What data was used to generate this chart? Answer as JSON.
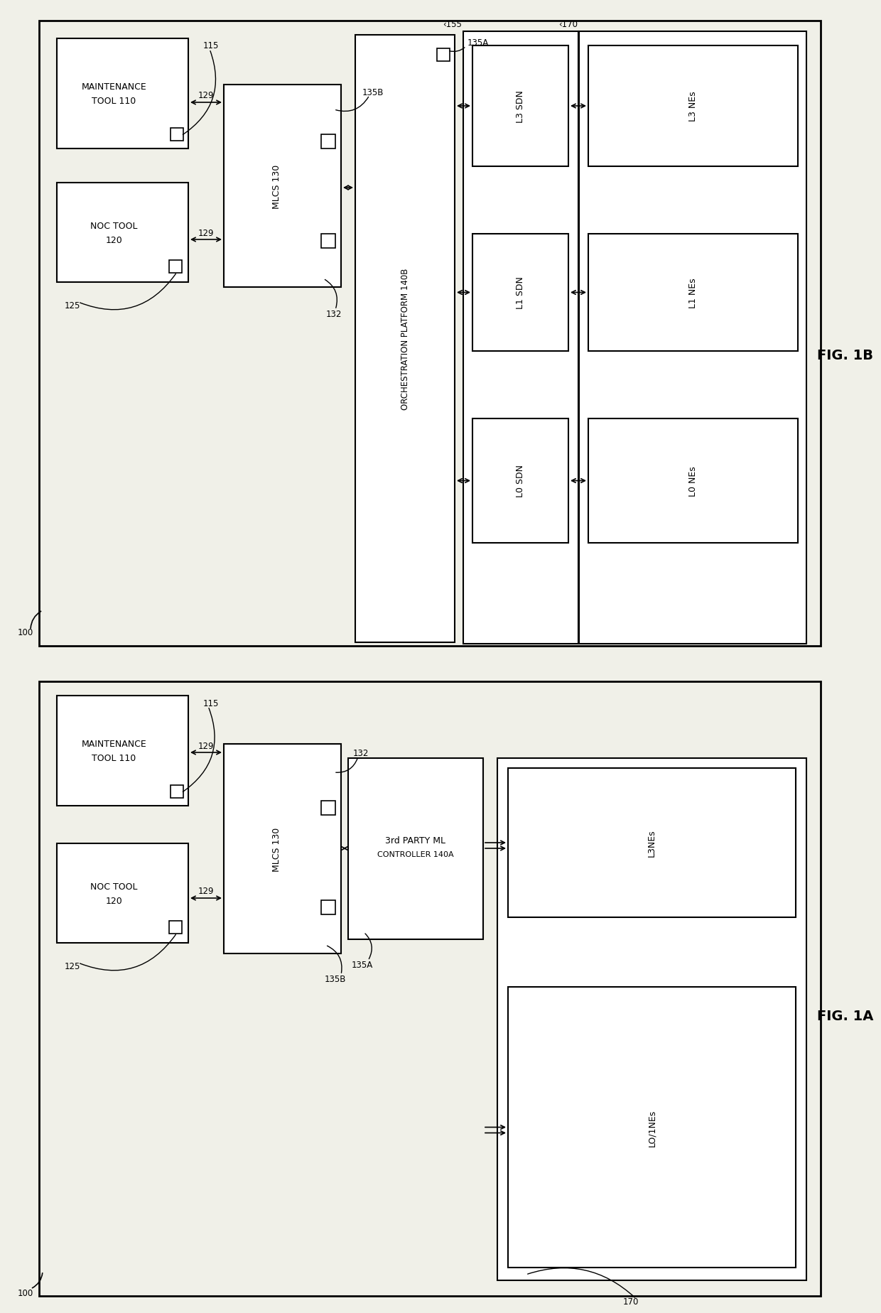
{
  "fig_width": 12.4,
  "fig_height": 18.49,
  "dpi": 100,
  "bg_color": "#f0f0e8",
  "box_fc": "#ffffff",
  "box_ec": "#000000",
  "fig1b": {
    "title": "FIG. 1B",
    "outer": [
      55,
      30,
      1100,
      880
    ],
    "label100": [
      38,
      840,
      "100"
    ],
    "maint_tool": [
      80,
      55,
      185,
      155,
      "MAINTENANCE\nTOOL 110",
      "115"
    ],
    "noc_tool": [
      80,
      255,
      185,
      140,
      "NOC TOOL\n120",
      "125"
    ],
    "mlcs": [
      315,
      120,
      165,
      280,
      "MLCS 130",
      "135B",
      "132"
    ],
    "orch": [
      500,
      55,
      140,
      840,
      "ORCHESTRATION PLATFORM 140B",
      "135A"
    ],
    "sdn_outer": [
      650,
      45,
      160,
      855,
      "155"
    ],
    "l3sdn": [
      663,
      68,
      135,
      165,
      "L3 SDN"
    ],
    "l1sdn": [
      663,
      335,
      135,
      160,
      "L1 SDN"
    ],
    "l0sdn": [
      663,
      595,
      135,
      175,
      "L0 SDN"
    ],
    "nes_outer": [
      820,
      45,
      310,
      855,
      "170"
    ],
    "l3nes": [
      835,
      68,
      285,
      165,
      "L3 NEs"
    ],
    "l1nes": [
      835,
      335,
      285,
      160,
      "L1 NEs"
    ],
    "l0nes": [
      835,
      595,
      285,
      175,
      "L0 NEs"
    ]
  },
  "fig1a": {
    "title": "FIG. 1A",
    "outer": [
      55,
      955,
      1100,
      865
    ],
    "label100": [
      38,
      1800,
      "100"
    ],
    "maint_tool": [
      80,
      975,
      185,
      155,
      "MAINTENANCE\nTOOL 110",
      "115"
    ],
    "noc_tool": [
      80,
      1185,
      185,
      140,
      "NOC TOOL\n120",
      "125"
    ],
    "mlcs": [
      315,
      1045,
      165,
      285,
      "MLCS 130",
      "132",
      "135B"
    ],
    "ctrl": [
      490,
      1060,
      185,
      270,
      "3rd PARTY ML\nCONTROLLER 140A",
      "135A"
    ],
    "nes_outer": [
      700,
      1060,
      415,
      735,
      "170"
    ],
    "l3nes": [
      715,
      1075,
      385,
      200,
      "L3NEs"
    ],
    "lo1nes": [
      715,
      1380,
      385,
      390,
      "LO/1NEs"
    ]
  }
}
